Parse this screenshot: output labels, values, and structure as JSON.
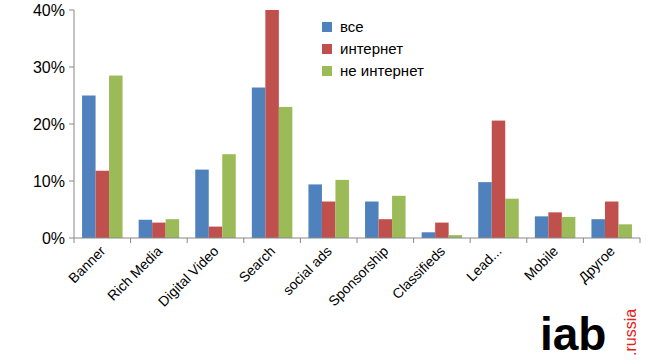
{
  "chart_data": {
    "type": "bar",
    "categories": [
      "Banner",
      "Rich Media",
      "Digital Video",
      "Search",
      "social ads",
      "Sponsorship",
      "Classifieds",
      "Lead...",
      "Mobile",
      "Другое"
    ],
    "series": [
      {
        "name": "все",
        "color": "#4f81bd",
        "values": [
          25,
          3.2,
          12,
          26.4,
          9.4,
          6.4,
          1,
          9.8,
          3.8,
          3.3
        ]
      },
      {
        "name": "интернет",
        "color": "#c0504d",
        "values": [
          11.8,
          2.7,
          2,
          40,
          6.4,
          3.3,
          2.7,
          20.6,
          4.5,
          6.4
        ]
      },
      {
        "name": "не интернет",
        "color": "#9bbb59",
        "values": [
          28.5,
          3.3,
          14.7,
          23,
          10.2,
          7.4,
          0.5,
          6.9,
          3.7,
          2.4
        ]
      }
    ],
    "ylim": [
      0,
      40
    ],
    "yticks": [
      {
        "value": 0,
        "label": "0%"
      },
      {
        "value": 10,
        "label": "10%"
      },
      {
        "value": 20,
        "label": "20%"
      },
      {
        "value": 30,
        "label": "30%"
      },
      {
        "value": 40,
        "label": "40%"
      }
    ],
    "grid": false,
    "legend": "top"
  },
  "logo": {
    "text": "iab",
    "suffix": ".russia"
  }
}
